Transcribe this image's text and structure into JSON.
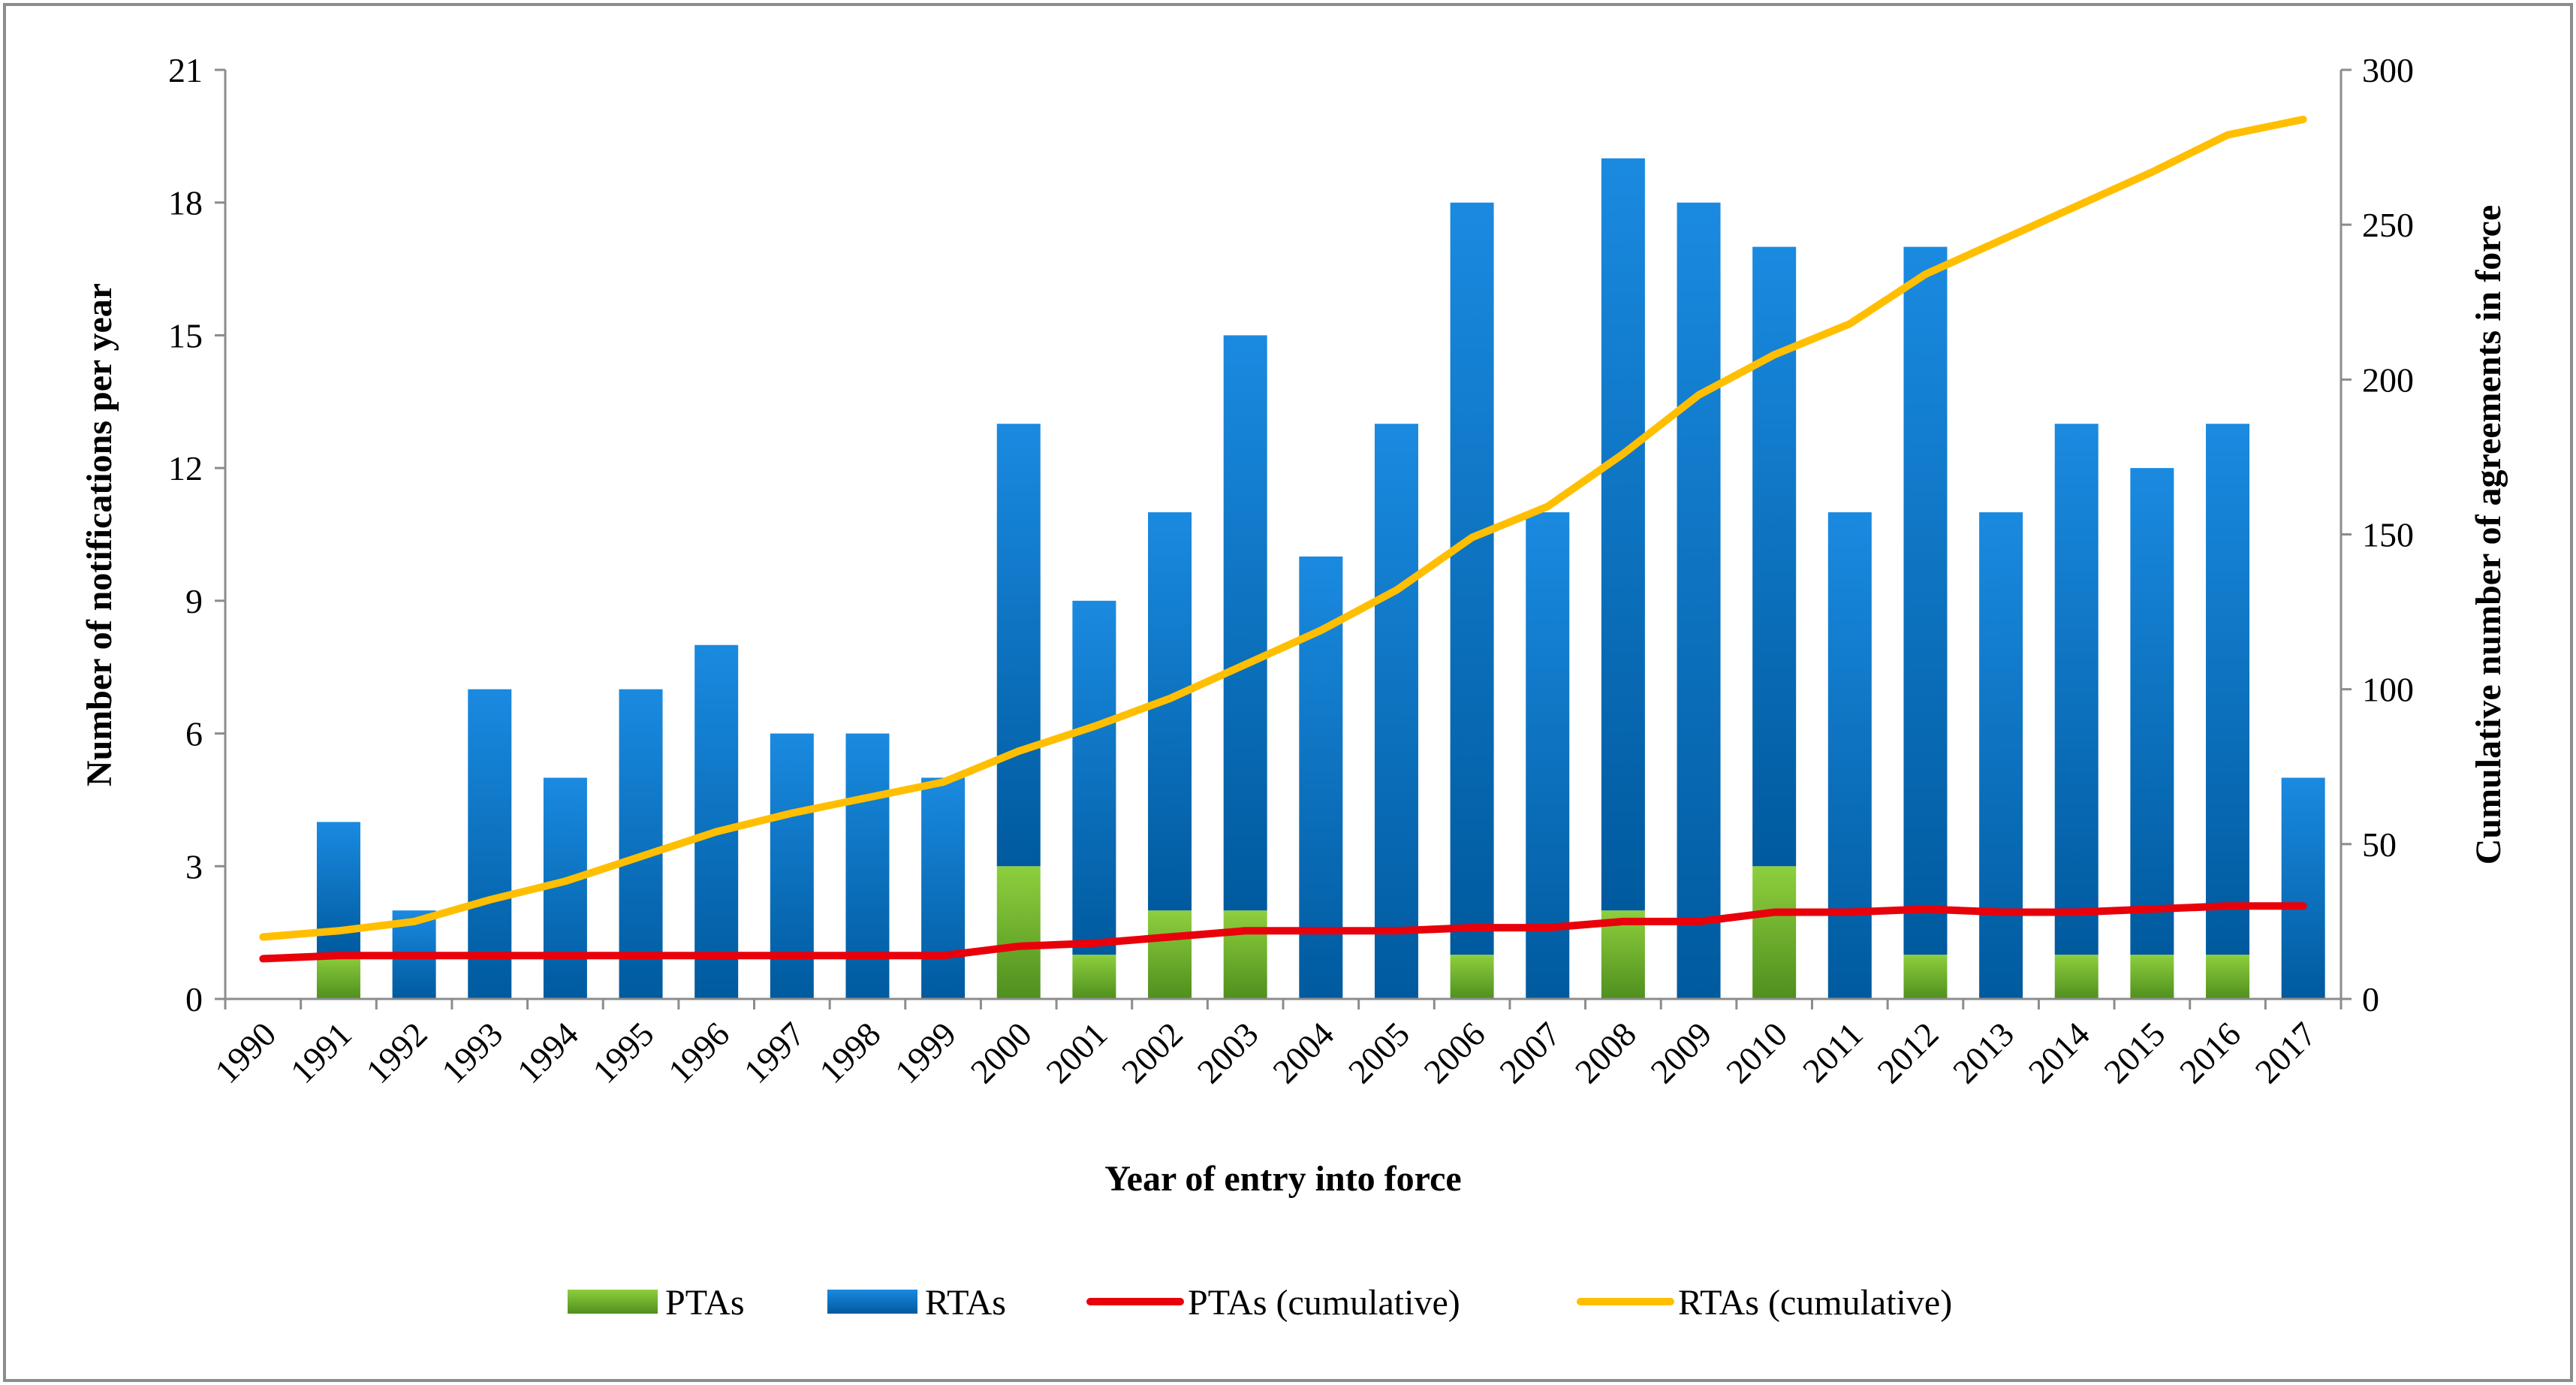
{
  "chart_data": {
    "type": "bar",
    "categories": [
      "1990",
      "1991",
      "1992",
      "1993",
      "1994",
      "1995",
      "1996",
      "1997",
      "1998",
      "1999",
      "2000",
      "2001",
      "2002",
      "2003",
      "2004",
      "2005",
      "2006",
      "2007",
      "2008",
      "2009",
      "2010",
      "2011",
      "2012",
      "2013",
      "2014",
      "2015",
      "2016",
      "2017"
    ],
    "series": [
      {
        "name": "PTAs",
        "kind": "stacked-bar",
        "axis": "left",
        "color": "#6fb52e",
        "values": [
          0,
          1,
          0,
          0,
          0,
          0,
          0,
          0,
          0,
          0,
          3,
          1,
          2,
          2,
          0,
          0,
          1,
          0,
          2,
          0,
          3,
          0,
          1,
          0,
          1,
          1,
          1,
          0
        ]
      },
      {
        "name": "RTAs",
        "kind": "stacked-bar",
        "axis": "left",
        "color": "#0a73c4",
        "values": [
          0,
          3,
          2,
          7,
          5,
          7,
          8,
          6,
          6,
          5,
          10,
          8,
          9,
          13,
          10,
          13,
          17,
          11,
          17,
          18,
          14,
          11,
          16,
          11,
          12,
          11,
          12,
          5
        ]
      },
      {
        "name": "PTAs (cumulative)",
        "kind": "line",
        "axis": "right",
        "color": "#e8000b",
        "values": [
          13,
          14,
          14,
          14,
          14,
          14,
          14,
          14,
          14,
          14,
          17,
          18,
          20,
          22,
          22,
          22,
          23,
          23,
          25,
          25,
          28,
          28,
          29,
          28,
          28,
          29,
          30,
          30
        ]
      },
      {
        "name": "RTAs (cumulative)",
        "kind": "line",
        "axis": "right",
        "color": "#ffbf00",
        "values": [
          20,
          22,
          25,
          32,
          38,
          46,
          54,
          60,
          65,
          70,
          80,
          88,
          97,
          108,
          119,
          132,
          149,
          159,
          176,
          195,
          208,
          218,
          234,
          245,
          256,
          267,
          279,
          284
        ]
      }
    ],
    "xlabel": "Year of entry into force",
    "ylabel": "Number of notifications per year",
    "y2label": "Cumulative number of agreements in force",
    "ylim": [
      0,
      21
    ],
    "y2lim": [
      0,
      300
    ],
    "yticks": [
      "0",
      "3",
      "6",
      "9",
      "12",
      "15",
      "18",
      "21"
    ],
    "y2ticks": [
      "0",
      "50",
      "100",
      "150",
      "200",
      "250",
      "300"
    ],
    "grid": false,
    "legend_position": "bottom",
    "legend": [
      "PTAs",
      "RTAs",
      "PTAs (cumulative)",
      "RTAs (cumulative)"
    ]
  }
}
